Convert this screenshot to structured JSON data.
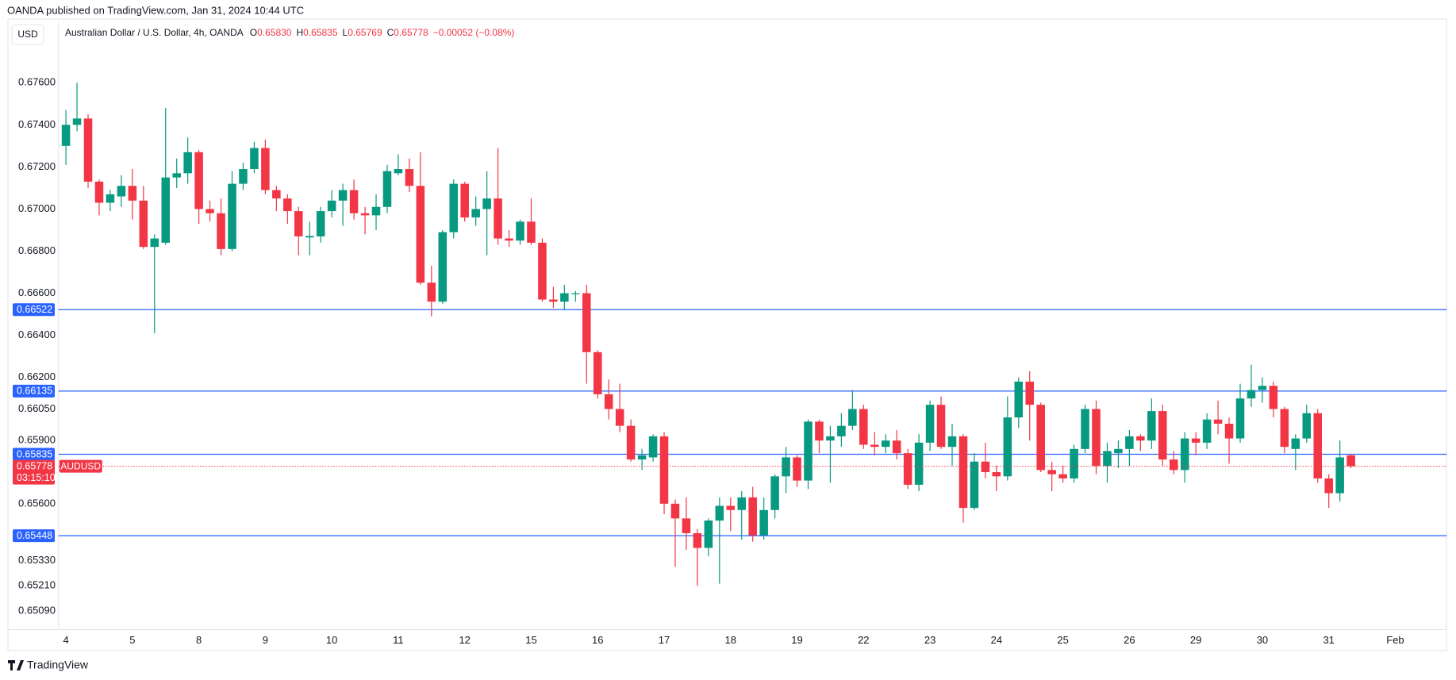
{
  "chart_data": {
    "type": "candlestick",
    "header": "OANDA published on TradingView.com, Jan 31, 2024 10:44 UTC",
    "currency": "USD",
    "title": "Australian Dollar / U.S. Dollar, 4h, OANDA",
    "ohlc_legend": [
      {
        "key": "O",
        "value": "0.65830"
      },
      {
        "key": "H",
        "value": "0.65835"
      },
      {
        "key": "L",
        "value": "0.65769"
      },
      {
        "key": "C",
        "value": "0.65778"
      }
    ],
    "change": "−0.00052 (−0.08%)",
    "footer": "TradingView",
    "up_color": "#089981",
    "down_color": "#f23645",
    "categories": [
      "4",
      null,
      null,
      null,
      null,
      null,
      "5",
      null,
      null,
      null,
      null,
      null,
      "8",
      null,
      null,
      null,
      null,
      null,
      "9",
      null,
      null,
      null,
      null,
      null,
      "10",
      null,
      null,
      null,
      null,
      null,
      "11",
      null,
      null,
      null,
      null,
      null,
      "12",
      null,
      null,
      null,
      null,
      null,
      "15",
      null,
      null,
      null,
      null,
      null,
      "16",
      null,
      null,
      null,
      null,
      null,
      "17",
      null,
      null,
      null,
      null,
      null,
      "18",
      null,
      null,
      null,
      null,
      null,
      "19",
      null,
      null,
      null,
      null,
      null,
      "22",
      null,
      null,
      null,
      null,
      null,
      "23",
      null,
      null,
      null,
      null,
      null,
      "24",
      null,
      null,
      null,
      null,
      null,
      "25",
      null,
      null,
      null,
      null,
      null,
      "26",
      null,
      null,
      null,
      null,
      null,
      "29",
      null,
      null,
      null,
      null,
      null,
      "30",
      null,
      null,
      null,
      null,
      null,
      "31",
      null,
      null,
      null,
      null,
      null,
      "Feb"
    ],
    "open": [
      0.673,
      0.674,
      0.6743,
      0.6713,
      0.6703,
      0.6706,
      0.6711,
      0.6704,
      0.6682,
      0.6684,
      0.6715,
      0.6717,
      0.6727,
      0.67,
      0.6698,
      0.6681,
      0.6712,
      0.6719,
      0.6729,
      0.6709,
      0.6705,
      0.6699,
      0.66865,
      0.6687,
      0.6699,
      0.6704,
      0.6709,
      0.6698,
      0.6697,
      0.6701,
      0.6717,
      0.6719,
      0.6711,
      0.6665,
      0.6656,
      0.6689,
      0.6712,
      0.6696,
      0.67,
      0.6705,
      0.6686,
      0.6685,
      0.6694,
      0.6684,
      0.6657,
      0.6656,
      0.666,
      0.666,
      0.6632,
      0.6612,
      0.6605,
      0.6597,
      0.6581,
      0.6582,
      0.6592,
      0.656,
      0.6553,
      0.6546,
      0.6539,
      0.6552,
      0.6559,
      0.6557,
      0.6563,
      0.6545,
      0.6557,
      0.6573,
      0.6582,
      0.6571,
      0.6599,
      0.659,
      0.6592,
      0.6597,
      0.6605,
      0.6588,
      0.6587,
      0.659,
      0.6584,
      0.6569,
      0.6589,
      0.6607,
      0.6587,
      0.6592,
      0.6558,
      0.658,
      0.6575,
      0.6573,
      0.6601,
      0.6618,
      0.6607,
      0.6576,
      0.6574,
      0.6572,
      0.6586,
      0.6605,
      0.6578,
      0.6584,
      0.6586,
      0.6592,
      0.659,
      0.6604,
      0.6581,
      0.6576,
      0.6591,
      0.6589,
      0.66,
      0.6598,
      0.6591,
      0.661,
      0.6614,
      0.6616,
      0.6605,
      0.6586,
      0.6591,
      0.6603,
      0.6572,
      0.6565,
      0.6583,
      null,
      null,
      null,
      null
    ],
    "high": [
      0.6747,
      0.676,
      0.6745,
      0.6714,
      0.6709,
      0.6716,
      0.6719,
      0.6711,
      0.6688,
      0.6748,
      0.6724,
      0.6734,
      0.6728,
      0.6704,
      0.6705,
      0.6718,
      0.6722,
      0.6732,
      0.6733,
      0.6711,
      0.6707,
      0.6701,
      0.6694,
      0.6701,
      0.6709,
      0.6712,
      0.6714,
      0.6701,
      0.6707,
      0.6721,
      0.6726,
      0.6724,
      0.6727,
      0.6673,
      0.669,
      0.6714,
      0.6713,
      0.6706,
      0.6718,
      0.6729,
      0.669,
      0.6695,
      0.6705,
      0.6686,
      0.6663,
      0.6664,
      0.6661,
      0.6664,
      0.6633,
      0.6619,
      0.6617,
      0.66,
      0.6586,
      0.6593,
      0.6594,
      0.6562,
      0.6563,
      0.6548,
      0.6553,
      0.6563,
      0.6563,
      0.6566,
      0.6568,
      0.6563,
      0.6574,
      0.6587,
      0.6583,
      0.66,
      0.66,
      0.6597,
      0.6603,
      0.6614,
      0.6607,
      0.6594,
      0.6593,
      0.6595,
      0.6586,
      0.6593,
      0.6609,
      0.6611,
      0.6598,
      0.6593,
      0.6584,
      0.6589,
      0.6578,
      0.6611,
      0.662,
      0.6623,
      0.6608,
      0.658,
      0.6578,
      0.6588,
      0.6607,
      0.6609,
      0.6589,
      0.659,
      0.6595,
      0.6593,
      0.661,
      0.6607,
      0.6585,
      0.6594,
      0.6594,
      0.6603,
      0.6609,
      0.6601,
      0.6617,
      0.6626,
      0.662,
      0.6618,
      0.6606,
      0.6593,
      0.6607,
      0.6605,
      0.6574,
      0.659,
      0.65835,
      null,
      null,
      null,
      null
    ],
    "low": [
      0.6721,
      0.6737,
      0.671,
      0.6697,
      0.6699,
      0.6701,
      0.6695,
      0.6681,
      0.6641,
      0.6683,
      0.671,
      0.6712,
      0.6693,
      0.6694,
      0.6678,
      0.668,
      0.6709,
      0.6717,
      0.6707,
      0.6699,
      0.6693,
      0.6678,
      0.6678,
      0.6684,
      0.6696,
      0.6692,
      0.6695,
      0.6688,
      0.669,
      0.6698,
      0.6716,
      0.6708,
      0.6664,
      0.6649,
      0.6655,
      0.6686,
      0.6694,
      0.6692,
      0.6678,
      0.6683,
      0.6682,
      0.6683,
      0.6683,
      0.6656,
      0.6653,
      0.6652,
      0.6656,
      0.6617,
      0.661,
      0.66,
      0.6594,
      0.658,
      0.6576,
      0.658,
      0.6555,
      0.653,
      0.6538,
      0.6521,
      0.6535,
      0.6522,
      0.6547,
      0.6543,
      0.6542,
      0.6543,
      0.6553,
      0.6565,
      0.6568,
      0.6567,
      0.6584,
      0.657,
      0.6587,
      0.6595,
      0.6586,
      0.6583,
      0.6584,
      0.6581,
      0.6567,
      0.6566,
      0.6585,
      0.6586,
      0.6578,
      0.6551,
      0.6557,
      0.6572,
      0.6566,
      0.6571,
      0.6596,
      0.659,
      0.6575,
      0.6566,
      0.657,
      0.657,
      0.6584,
      0.6574,
      0.657,
      0.6577,
      0.6578,
      0.6585,
      0.6586,
      0.6578,
      0.6574,
      0.657,
      0.6583,
      0.6586,
      0.6593,
      0.6579,
      0.6589,
      0.6606,
      0.6608,
      0.6601,
      0.6584,
      0.6576,
      0.6589,
      0.657,
      0.6558,
      0.6561,
      0.65769,
      null,
      null,
      null,
      null
    ],
    "close": [
      0.674,
      0.6743,
      0.6713,
      0.6703,
      0.6707,
      0.6711,
      0.6704,
      0.6682,
      0.6686,
      0.6715,
      0.6717,
      0.6727,
      0.67,
      0.6698,
      0.6681,
      0.6712,
      0.6719,
      0.6729,
      0.6709,
      0.6705,
      0.6699,
      0.6687,
      0.66872,
      0.6699,
      0.6704,
      0.6709,
      0.6698,
      0.6697,
      0.6701,
      0.6718,
      0.6719,
      0.6711,
      0.6665,
      0.6656,
      0.6689,
      0.6712,
      0.6696,
      0.67,
      0.6705,
      0.6686,
      0.6685,
      0.6694,
      0.6684,
      0.6657,
      0.6656,
      0.666,
      0.666,
      0.6632,
      0.6612,
      0.6605,
      0.6597,
      0.6581,
      0.6583,
      0.6592,
      0.656,
      0.6553,
      0.6546,
      0.6539,
      0.6552,
      0.6559,
      0.6557,
      0.6563,
      0.6545,
      0.6557,
      0.6573,
      0.6582,
      0.6571,
      0.6599,
      0.659,
      0.6592,
      0.6597,
      0.6605,
      0.6588,
      0.6587,
      0.659,
      0.6584,
      0.6569,
      0.6589,
      0.6607,
      0.6587,
      0.6592,
      0.6558,
      0.658,
      0.6575,
      0.6573,
      0.6601,
      0.6618,
      0.6607,
      0.6576,
      0.6574,
      0.6572,
      0.6586,
      0.6605,
      0.6578,
      0.6585,
      0.6586,
      0.6592,
      0.659,
      0.6604,
      0.6581,
      0.6576,
      0.6591,
      0.6589,
      0.66,
      0.6598,
      0.6591,
      0.661,
      0.6614,
      0.6616,
      0.6605,
      0.6587,
      0.6591,
      0.6603,
      0.6572,
      0.6565,
      0.6582,
      0.65778,
      null,
      null,
      null,
      null
    ],
    "ylim": [
      0.65002,
      0.67896
    ],
    "yticks": [
      {
        "value": 0.676,
        "label": "0.67600"
      },
      {
        "value": 0.674,
        "label": "0.67400"
      },
      {
        "value": 0.672,
        "label": "0.67200"
      },
      {
        "value": 0.67,
        "label": "0.67000"
      },
      {
        "value": 0.668,
        "label": "0.66800"
      },
      {
        "value": 0.666,
        "label": "0.66600"
      },
      {
        "value": 0.664,
        "label": "0.66400"
      },
      {
        "value": 0.662,
        "label": "0.66200"
      },
      {
        "value": 0.6605,
        "label": "0.66050"
      },
      {
        "value": 0.659,
        "label": "0.65900"
      },
      {
        "value": 0.656,
        "label": "0.65600"
      },
      {
        "value": 0.6533,
        "label": "0.65330"
      },
      {
        "value": 0.6521,
        "label": "0.65210"
      },
      {
        "value": 0.6509,
        "label": "0.65090"
      }
    ],
    "grid": false,
    "hline_color": "#2962ff",
    "hlines": [
      {
        "value": 0.66522,
        "label": "0.66522"
      },
      {
        "value": 0.66135,
        "label": "0.66135"
      },
      {
        "value": 0.65835,
        "label": "0.65835"
      },
      {
        "value": 0.65448,
        "label": "0.65448"
      }
    ],
    "current_price": {
      "value": 0.65778,
      "label": "0.65778",
      "countdown": "03:15:10",
      "symbol": "AUDUSD",
      "color": "#f23645"
    }
  }
}
